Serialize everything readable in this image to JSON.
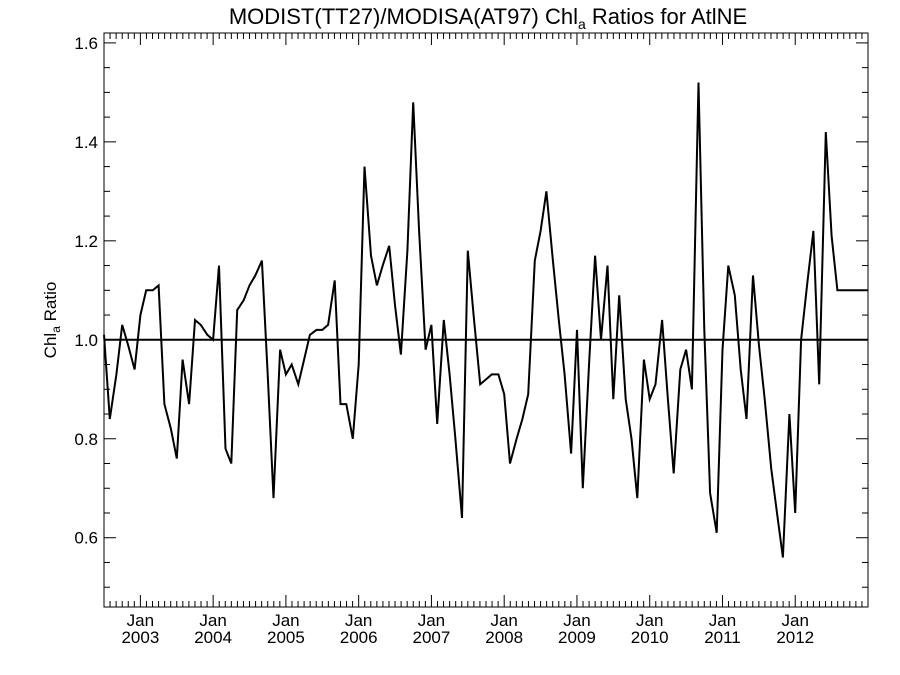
{
  "chart_data": {
    "type": "line",
    "title_main": "MODIST(TT27)/MODISA(AT97)  Chl",
    "title_sub": "a",
    "title_rest": " Ratios for AtlNE",
    "ylabel_main": "Chl",
    "ylabel_sub": "a",
    "ylabel_rest": " Ratio",
    "xlim": [
      2002.5,
      2013.0
    ],
    "ylim": [
      0.46,
      1.62
    ],
    "yticks": [
      0.6,
      0.8,
      1.0,
      1.2,
      1.4,
      1.6
    ],
    "ytick_labels": [
      "0.6",
      "0.8",
      "1.0",
      "1.2",
      "1.4",
      "1.6"
    ],
    "xticks": [
      {
        "month": "Jan",
        "year": "2003"
      },
      {
        "month": "Jan",
        "year": "2004"
      },
      {
        "month": "Jan",
        "year": "2005"
      },
      {
        "month": "Jan",
        "year": "2006"
      },
      {
        "month": "Jan",
        "year": "2007"
      },
      {
        "month": "Jan",
        "year": "2008"
      },
      {
        "month": "Jan",
        "year": "2009"
      },
      {
        "month": "Jan",
        "year": "2010"
      },
      {
        "month": "Jan",
        "year": "2011"
      },
      {
        "month": "Jan",
        "year": "2012"
      }
    ],
    "reference_line": 1.0,
    "grid": false,
    "series": [
      {
        "x": [
          2002.5,
          2002.58,
          2002.67,
          2002.75,
          2002.83,
          2002.92,
          2003.0,
          2003.08,
          2003.17,
          2003.25,
          2003.33,
          2003.42,
          2003.5,
          2003.58,
          2003.67,
          2003.75,
          2003.83,
          2003.92,
          2004.0,
          2004.08,
          2004.17,
          2004.25,
          2004.33,
          2004.42,
          2004.5,
          2004.58,
          2004.67,
          2004.75,
          2004.83,
          2004.92,
          2005.0,
          2005.08,
          2005.17,
          2005.25,
          2005.33,
          2005.42,
          2005.5,
          2005.58,
          2005.67,
          2005.75,
          2005.83,
          2005.92,
          2006.0,
          2006.08,
          2006.17,
          2006.25,
          2006.33,
          2006.42,
          2006.5,
          2006.58,
          2006.67,
          2006.75,
          2006.83,
          2006.92,
          2007.0,
          2007.08,
          2007.17,
          2007.25,
          2007.33,
          2007.42,
          2007.5,
          2007.58,
          2007.67,
          2007.75,
          2007.83,
          2007.92,
          2008.0,
          2008.08,
          2008.17,
          2008.25,
          2008.33,
          2008.42,
          2008.5,
          2008.58,
          2008.67,
          2008.75,
          2008.83,
          2008.92,
          2009.0,
          2009.08,
          2009.17,
          2009.25,
          2009.33,
          2009.42,
          2009.5,
          2009.58,
          2009.67,
          2009.75,
          2009.83,
          2009.92,
          2010.0,
          2010.08,
          2010.17,
          2010.25,
          2010.33,
          2010.42,
          2010.5,
          2010.58,
          2010.67,
          2010.75,
          2010.83,
          2010.92,
          2011.0,
          2011.08,
          2011.17,
          2011.25,
          2011.33,
          2011.42,
          2011.5,
          2011.58,
          2011.67,
          2011.75,
          2011.83,
          2011.92,
          2012.0,
          2012.08,
          2012.17,
          2012.25,
          2012.33,
          2012.42,
          2012.5,
          2012.58,
          2012.67,
          2012.75,
          2012.83,
          2012.92,
          2013.0
        ],
        "y": [
          1.01,
          0.84,
          0.93,
          1.03,
          0.99,
          0.94,
          1.05,
          1.1,
          1.1,
          1.11,
          0.87,
          0.82,
          0.76,
          0.96,
          0.87,
          1.04,
          1.03,
          1.01,
          1.0,
          1.15,
          0.78,
          0.75,
          1.06,
          1.08,
          1.11,
          1.13,
          1.16,
          0.93,
          0.68,
          0.98,
          0.93,
          0.95,
          0.91,
          0.96,
          1.01,
          1.02,
          1.02,
          1.03,
          1.12,
          0.87,
          0.87,
          0.8,
          0.95,
          1.35,
          1.17,
          1.11,
          1.15,
          1.19,
          1.07,
          0.97,
          1.18,
          1.48,
          1.22,
          0.98,
          1.03,
          0.83,
          1.04,
          0.93,
          0.8,
          0.64,
          1.18,
          1.05,
          0.91,
          0.92,
          0.93,
          0.93,
          0.89,
          0.75,
          0.8,
          0.84,
          0.89,
          1.16,
          1.22,
          1.3,
          1.16,
          1.04,
          0.93,
          0.77,
          1.02,
          0.7,
          0.96,
          1.17,
          1.0,
          1.15,
          0.88,
          1.09,
          0.88,
          0.8,
          0.68,
          0.96,
          0.88,
          0.91,
          1.04,
          0.88,
          0.73,
          0.94,
          0.98,
          0.9,
          1.52,
          1.02,
          0.69,
          0.61,
          0.98,
          1.15,
          1.09,
          0.94,
          0.84,
          1.13,
          0.99,
          0.88,
          0.74,
          0.65,
          0.56,
          0.85,
          0.65,
          1.0,
          1.12,
          1.22,
          0.91,
          1.42,
          1.21,
          1.1,
          1.1,
          1.1,
          1.1,
          1.1,
          1.1
        ]
      }
    ]
  }
}
